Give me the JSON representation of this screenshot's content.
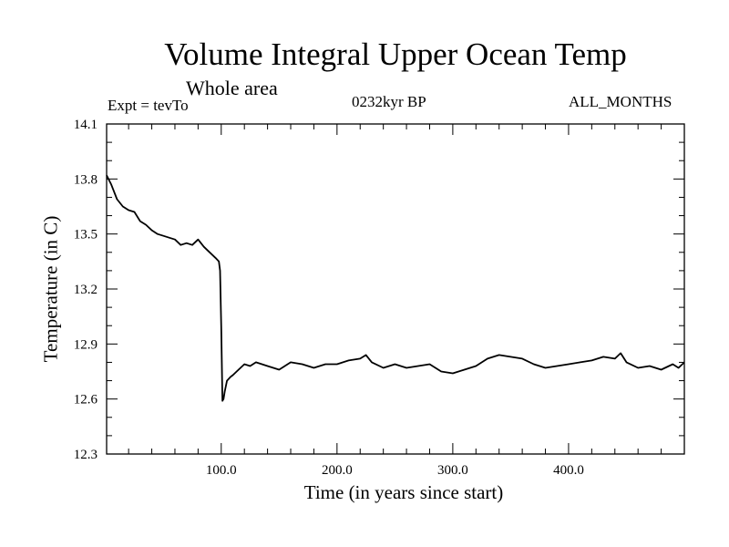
{
  "chart_data": {
    "type": "line",
    "title": "Volume Integral Upper Ocean Temp",
    "subtitle": "Whole area",
    "annotations": {
      "left": "Expt = tevTo",
      "center": "0232kyr BP",
      "right": "ALL_MONTHS"
    },
    "xlabel": "Time (in years since start)",
    "ylabel": "Temperature (in C)",
    "xlim": [
      1,
      500
    ],
    "ylim": [
      12.3,
      14.1
    ],
    "xticks": [
      100,
      200,
      300,
      400
    ],
    "xtick_labels": [
      "100.0",
      "200.0",
      "300.0",
      "400.0"
    ],
    "yticks": [
      12.3,
      12.6,
      12.9,
      13.2,
      13.5,
      13.8,
      14.1
    ],
    "ytick_labels": [
      "12.3",
      "12.6",
      "12.9",
      "13.2",
      "13.5",
      "13.8",
      "14.1"
    ],
    "grid": false,
    "series": [
      {
        "color": "#000000",
        "x": [
          1,
          5,
          10,
          15,
          20,
          25,
          30,
          35,
          40,
          45,
          50,
          55,
          60,
          65,
          70,
          75,
          80,
          85,
          90,
          95,
          98,
          99,
          100,
          101,
          102,
          103,
          105,
          108,
          110,
          115,
          120,
          125,
          130,
          140,
          150,
          160,
          170,
          180,
          190,
          200,
          210,
          220,
          225,
          230,
          240,
          250,
          260,
          270,
          280,
          290,
          300,
          310,
          320,
          330,
          340,
          350,
          360,
          370,
          380,
          390,
          400,
          410,
          420,
          430,
          440,
          445,
          450,
          460,
          470,
          480,
          490,
          495,
          500
        ],
        "y": [
          13.82,
          13.77,
          13.69,
          13.65,
          13.63,
          13.62,
          13.57,
          13.55,
          13.52,
          13.5,
          13.49,
          13.48,
          13.47,
          13.44,
          13.45,
          13.44,
          13.47,
          13.43,
          13.4,
          13.37,
          13.35,
          13.3,
          12.99,
          12.59,
          12.6,
          12.64,
          12.7,
          12.72,
          12.73,
          12.76,
          12.79,
          12.78,
          12.8,
          12.78,
          12.76,
          12.8,
          12.79,
          12.77,
          12.79,
          12.79,
          12.81,
          12.82,
          12.84,
          12.8,
          12.77,
          12.79,
          12.77,
          12.78,
          12.79,
          12.75,
          12.74,
          12.76,
          12.78,
          12.82,
          12.84,
          12.83,
          12.82,
          12.79,
          12.77,
          12.78,
          12.79,
          12.8,
          12.81,
          12.83,
          12.82,
          12.85,
          12.8,
          12.77,
          12.78,
          12.76,
          12.79,
          12.77,
          12.8
        ]
      }
    ]
  }
}
